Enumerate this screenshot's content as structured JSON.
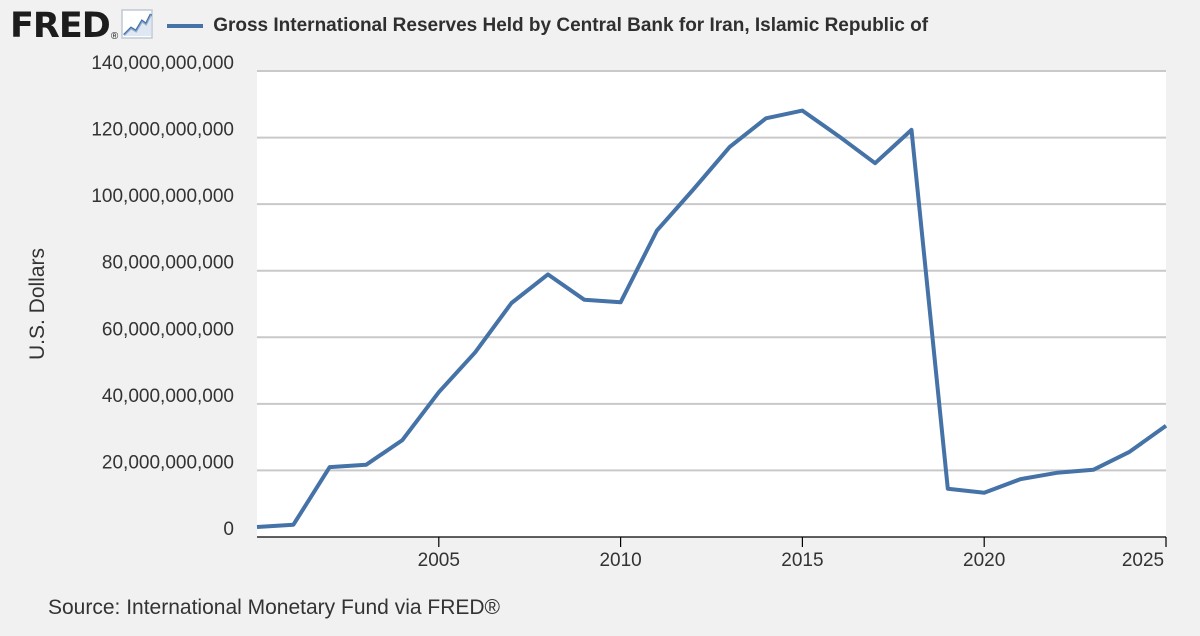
{
  "header": {
    "logo_text": "FRED",
    "logo_reg": "®",
    "title": "Gross International Reserves Held by Central Bank for Iran, Islamic Republic of"
  },
  "source": "Source: International Monetary Fund via FRED®",
  "colors": {
    "series": "#4572a7",
    "background": "#f0f1f0",
    "plot": "#ffffff",
    "grid": "#c9c9c9"
  },
  "chart_data": {
    "type": "line",
    "title": "Gross International Reserves Held by Central Bank for Iran, Islamic Republic of",
    "xlabel": "",
    "ylabel": "U.S. Dollars",
    "xlim": [
      2000,
      2025
    ],
    "ylim": [
      0,
      140000000000
    ],
    "x_ticks": [
      2005,
      2010,
      2015,
      2020,
      2025
    ],
    "x_tick_labels": [
      "2005",
      "2010",
      "2015",
      "2020",
      "2025"
    ],
    "y_ticks": [
      0,
      20000000000,
      40000000000,
      60000000000,
      80000000000,
      100000000000,
      120000000000,
      140000000000
    ],
    "y_tick_labels": [
      "0",
      "20,000,000,000",
      "40,000,000,000",
      "60,000,000,000",
      "80,000,000,000",
      "100,000,000,000",
      "120,000,000,000",
      "140,000,000,000"
    ],
    "grid": "horizontal",
    "series": [
      {
        "name": "Gross International Reserves Held by Central Bank for Iran, Islamic Republic of",
        "x": [
          2000,
          2001,
          2002,
          2003,
          2004,
          2005,
          2006,
          2007,
          2008,
          2009,
          2010,
          2011,
          2012,
          2013,
          2014,
          2015,
          2016,
          2017,
          2018,
          2019,
          2020,
          2021,
          2022,
          2023,
          2024,
          2025
        ],
        "values": [
          3000000000,
          3700000000,
          21000000000,
          21700000000,
          29100000000,
          43500000000,
          55500000000,
          70300000000,
          78900000000,
          71300000000,
          70500000000,
          92100000000,
          104400000000,
          117200000000,
          125800000000,
          128100000000,
          120400000000,
          112300000000,
          122300000000,
          14500000000,
          13300000000,
          17400000000,
          19300000000,
          20200000000,
          25600000000,
          33400000000
        ]
      }
    ]
  }
}
